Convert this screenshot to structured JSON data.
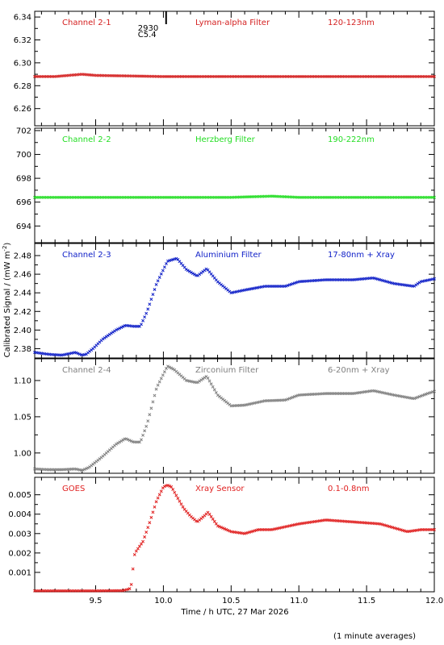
{
  "figure": {
    "ylabel_shared": "Calibrated Signal / (mW m",
    "ylabel_sup": "-2",
    "ylabel_tail": ")",
    "xlabel": "Time / h UTC, 27 Mar 2026",
    "footnote": "(1 minute averages)",
    "x_range": [
      9.05,
      12.0
    ],
    "x_ticks": [
      "9.5",
      "10.0",
      "10.5",
      "11.0",
      "11.5",
      "12.0"
    ],
    "x_tick_values": [
      9.5,
      10.0,
      10.5,
      11.0,
      11.5,
      12.0
    ],
    "marker": {
      "x": 10.02,
      "label1": "2930",
      "label2": "C5.4"
    }
  },
  "chart_data": [
    {
      "type": "scatter",
      "panel": "Channel 2-1",
      "labels": {
        "channel": "Channel 2-1",
        "filter": "Lyman-alpha Filter",
        "band": "120-123nm"
      },
      "color": "#d42020",
      "ylim": [
        6.245,
        6.345
      ],
      "yticks": [
        "6.26",
        "6.28",
        "6.30",
        "6.32",
        "6.34"
      ],
      "ytick_values": [
        6.26,
        6.28,
        6.3,
        6.32,
        6.34
      ],
      "series": [
        {
          "x": [
            9.05,
            9.2,
            9.3,
            9.4,
            9.5,
            10.0,
            10.5,
            11.0,
            11.5,
            12.0
          ],
          "y": [
            6.288,
            6.288,
            6.289,
            6.29,
            6.289,
            6.288,
            6.288,
            6.288,
            6.288,
            6.288
          ]
        }
      ]
    },
    {
      "type": "scatter",
      "panel": "Channel 2-2",
      "labels": {
        "channel": "Channel 2-2",
        "filter": "Herzberg Filter",
        "band": "190-222nm"
      },
      "color": "#22dd22",
      "ylim": [
        692.6,
        702.2
      ],
      "yticks": [
        "694",
        "696",
        "698",
        "700",
        "702"
      ],
      "ytick_values": [
        694,
        696,
        698,
        700,
        702
      ],
      "series": [
        {
          "x": [
            9.05,
            9.5,
            10.0,
            10.5,
            10.8,
            11.0,
            11.5,
            12.0
          ],
          "y": [
            696.4,
            696.4,
            696.4,
            696.4,
            696.5,
            696.4,
            696.4,
            696.4
          ]
        }
      ]
    },
    {
      "type": "scatter",
      "panel": "Channel 2-3",
      "labels": {
        "channel": "Channel 2-3",
        "filter": "Aluminium Filter",
        "band": "17-80nm + Xray"
      },
      "color": "#1020c8",
      "ylim": [
        2.37,
        2.493
      ],
      "yticks": [
        "2.38",
        "2.40",
        "2.42",
        "2.44",
        "2.46",
        "2.48"
      ],
      "ytick_values": [
        2.38,
        2.4,
        2.42,
        2.44,
        2.46,
        2.48
      ],
      "series": [
        {
          "x": [
            9.05,
            9.15,
            9.25,
            9.35,
            9.4,
            9.43,
            9.48,
            9.55,
            9.65,
            9.72,
            9.78,
            9.83,
            9.88,
            9.95,
            10.03,
            10.1,
            10.17,
            10.25,
            10.32,
            10.4,
            10.5,
            10.6,
            10.75,
            10.9,
            11.0,
            11.2,
            11.4,
            11.55,
            11.7,
            11.85,
            11.9,
            12.0
          ],
          "y": [
            2.376,
            2.374,
            2.373,
            2.376,
            2.373,
            2.374,
            2.38,
            2.39,
            2.4,
            2.405,
            2.404,
            2.404,
            2.42,
            2.45,
            2.474,
            2.477,
            2.465,
            2.458,
            2.466,
            2.452,
            2.44,
            2.443,
            2.447,
            2.447,
            2.452,
            2.454,
            2.454,
            2.456,
            2.45,
            2.447,
            2.452,
            2.455
          ]
        }
      ]
    },
    {
      "type": "scatter",
      "panel": "Channel 2-4",
      "labels": {
        "channel": "Channel 2-4",
        "filter": "Zirconium Filter",
        "band": "6-20nm + Xray"
      },
      "color": "#808080",
      "ylim": [
        0.972,
        1.13
      ],
      "yticks": [
        "1.00",
        "1.05",
        "1.10"
      ],
      "ytick_values": [
        1.0,
        1.05,
        1.1
      ],
      "series": [
        {
          "x": [
            9.05,
            9.15,
            9.25,
            9.35,
            9.4,
            9.45,
            9.55,
            9.65,
            9.72,
            9.78,
            9.83,
            9.88,
            9.95,
            10.03,
            10.08,
            10.17,
            10.25,
            10.32,
            10.4,
            10.5,
            10.6,
            10.75,
            10.9,
            11.0,
            11.2,
            11.4,
            11.55,
            11.7,
            11.85,
            11.95,
            12.0
          ],
          "y": [
            0.978,
            0.977,
            0.977,
            0.978,
            0.976,
            0.98,
            0.995,
            1.012,
            1.02,
            1.015,
            1.015,
            1.04,
            1.09,
            1.12,
            1.115,
            1.1,
            1.097,
            1.106,
            1.08,
            1.065,
            1.066,
            1.072,
            1.073,
            1.08,
            1.082,
            1.082,
            1.086,
            1.08,
            1.075,
            1.082,
            1.085
          ]
        }
      ]
    },
    {
      "type": "scatter",
      "panel": "GOES",
      "labels": {
        "channel": "GOES",
        "filter": "Xray Sensor",
        "band": "0.1-0.8nm"
      },
      "color": "#e02020",
      "ylim": [
        0.0,
        0.0059
      ],
      "yticks": [
        "0.001",
        "0.002",
        "0.003",
        "0.004",
        "0.005"
      ],
      "ytick_values": [
        0.001,
        0.002,
        0.003,
        0.004,
        0.005
      ],
      "series": [
        {
          "x": [
            9.05,
            9.3,
            9.5,
            9.7,
            9.75,
            9.77,
            9.78,
            9.8,
            9.85,
            9.9,
            9.95,
            10.0,
            10.03,
            10.06,
            10.1,
            10.15,
            10.2,
            10.25,
            10.3,
            10.33,
            10.4,
            10.5,
            10.6,
            10.7,
            10.8,
            11.0,
            11.2,
            11.4,
            11.6,
            11.8,
            11.9,
            12.0
          ],
          "y": [
            5e-05,
            5e-05,
            5e-05,
            6e-05,
            0.00015,
            0.0005,
            0.0018,
            0.0021,
            0.0026,
            0.0036,
            0.0047,
            0.0054,
            0.0055,
            0.0054,
            0.0049,
            0.0043,
            0.0039,
            0.0036,
            0.0039,
            0.0041,
            0.0034,
            0.0031,
            0.003,
            0.0032,
            0.0032,
            0.0035,
            0.0037,
            0.0036,
            0.0035,
            0.0031,
            0.0032,
            0.0032
          ]
        }
      ]
    }
  ]
}
